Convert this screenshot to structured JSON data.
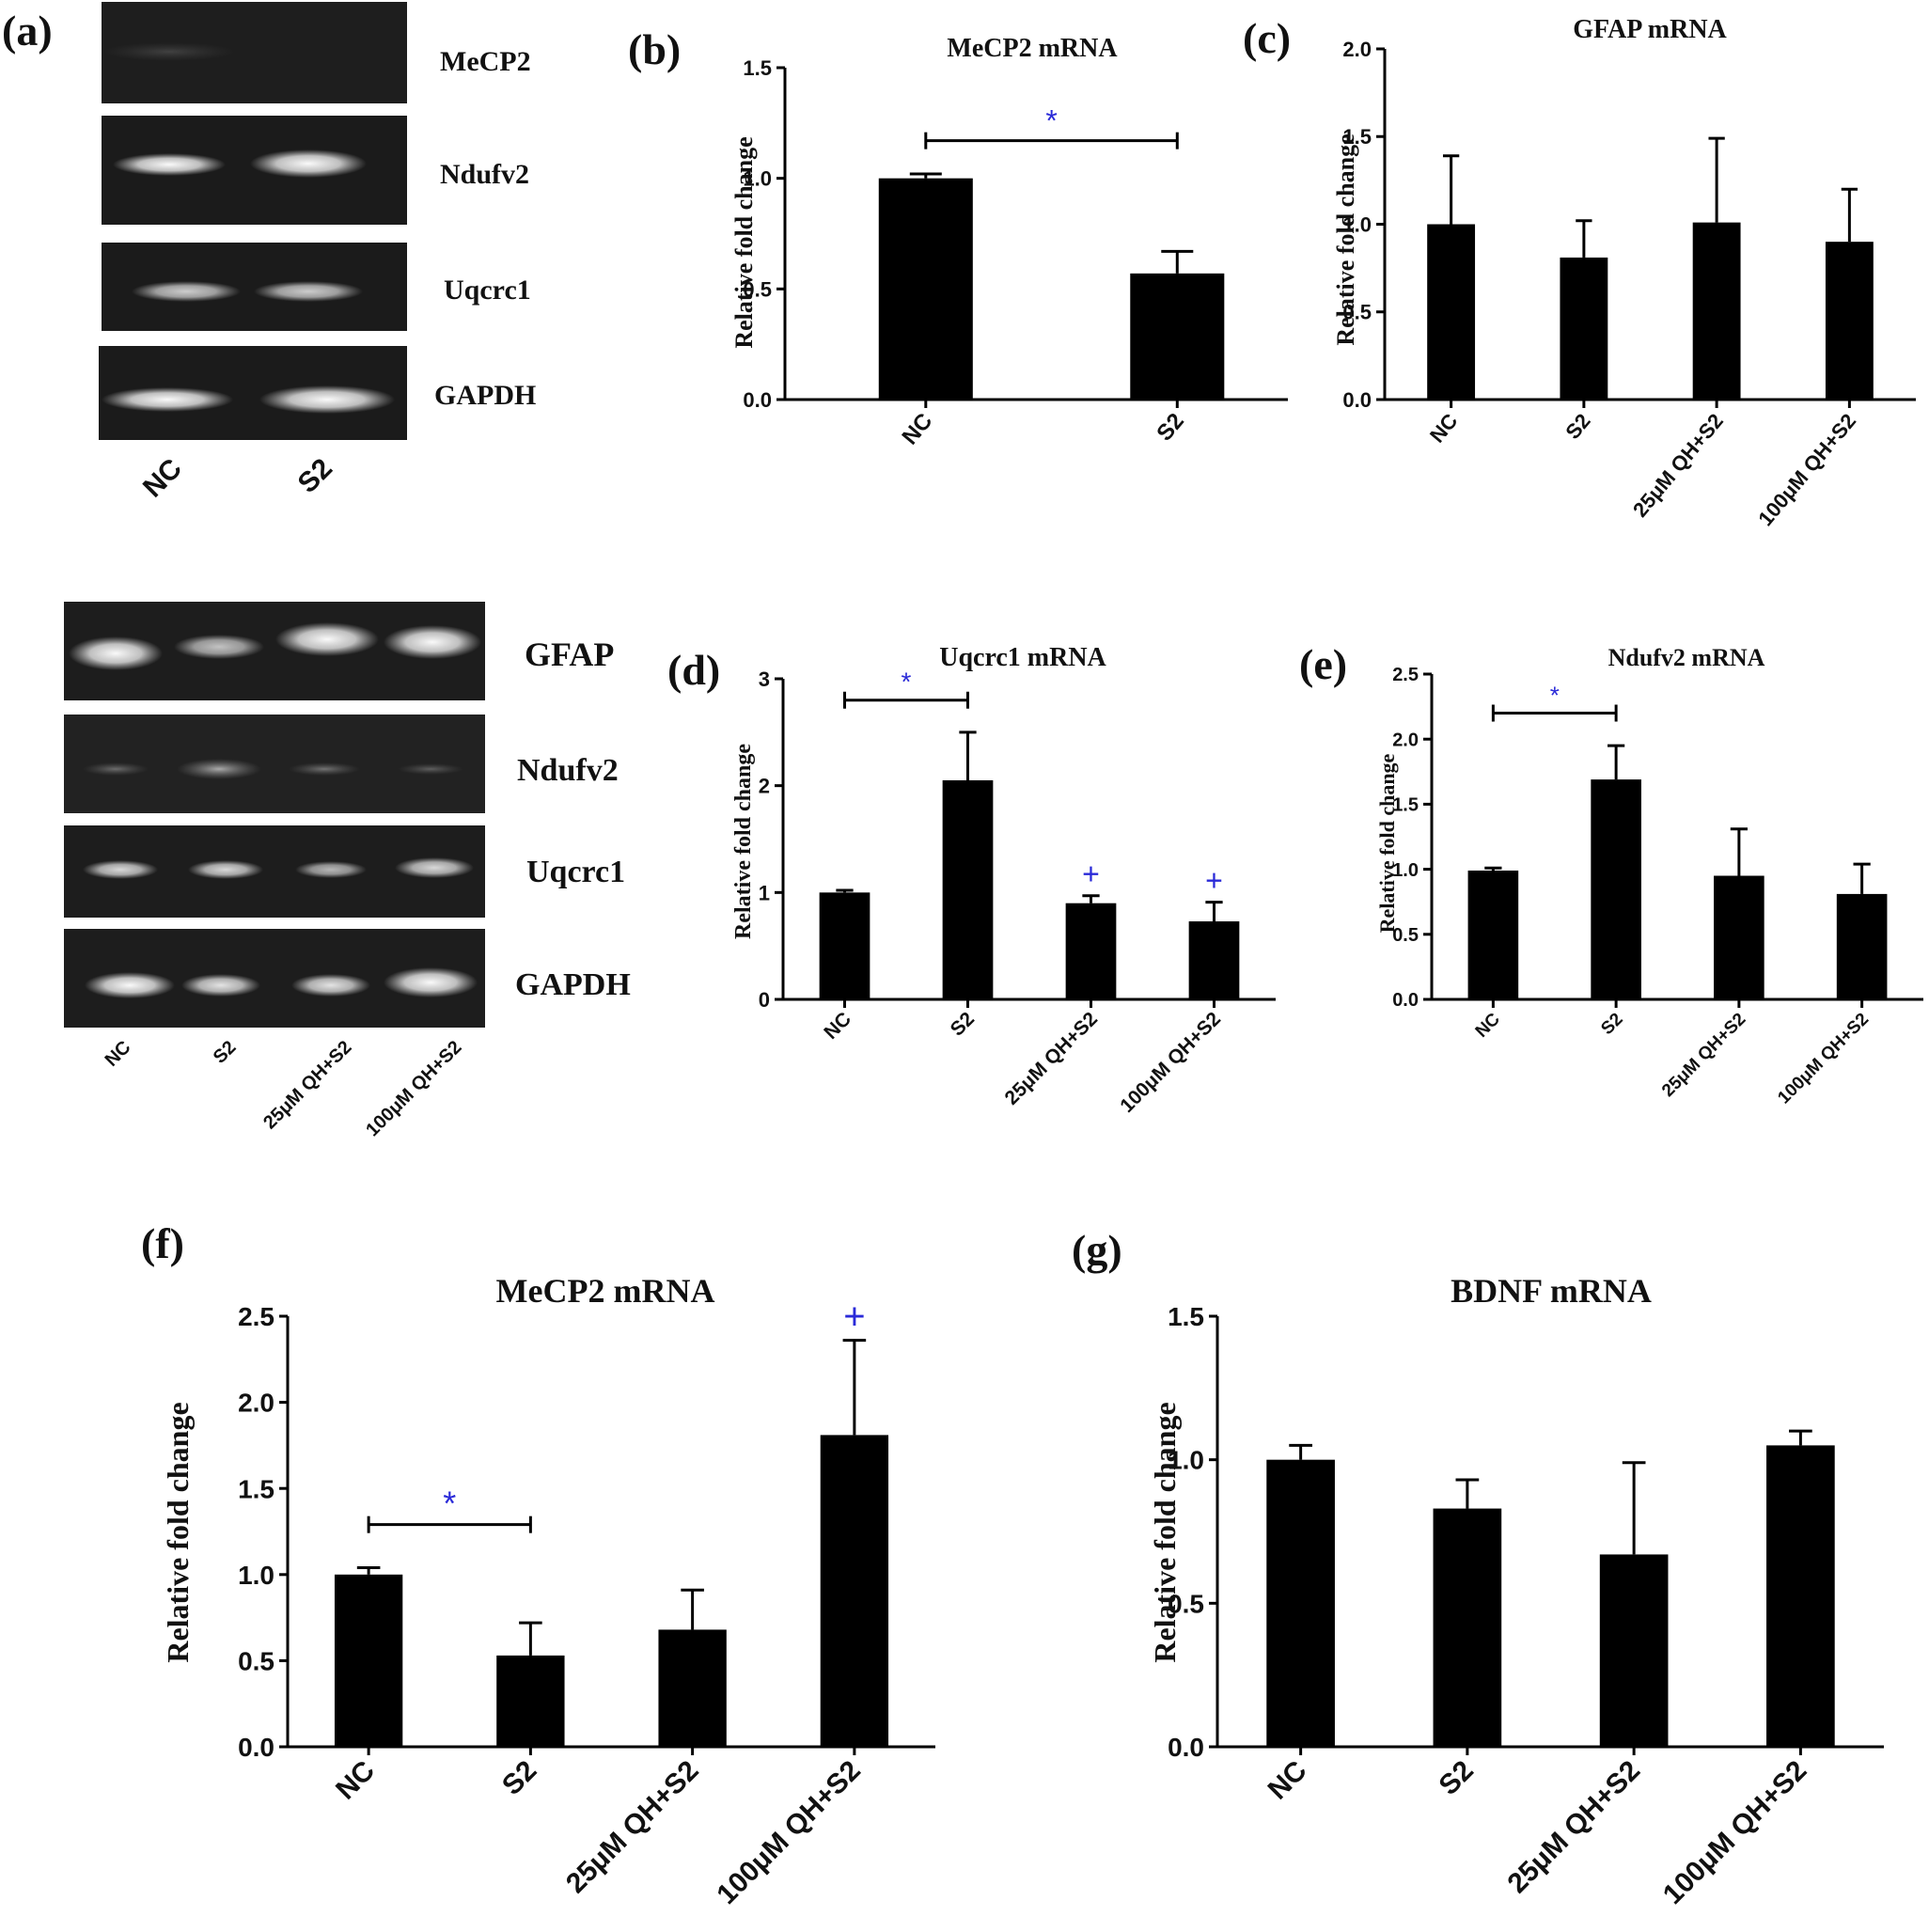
{
  "panel_letters": [
    "(a)",
    "(b)",
    "(c)",
    "(d)",
    "(e)",
    "(f)",
    "(g)"
  ],
  "gel_top": {
    "bands": [
      "MeCP2",
      "Ndufv2",
      "Uqcrc1",
      "GAPDH"
    ],
    "lanes": [
      "NC",
      "S2"
    ]
  },
  "gel_bottom": {
    "bands": [
      "GFAP",
      "Ndufv2",
      "Uqcrc1",
      "GAPDH"
    ],
    "lanes": [
      "NC",
      "S2",
      "25μM QH+S2",
      "100μM QH+S2"
    ]
  },
  "chart_data": [
    {
      "id": "b",
      "type": "bar",
      "title": "MeCP2 mRNA",
      "ylabel": "Relative fold change",
      "categories": [
        "NC",
        "S2"
      ],
      "values": [
        1.0,
        0.57
      ],
      "errors": [
        0.02,
        0.1
      ],
      "ylim": [
        0,
        1.5
      ],
      "yticks": [
        "0.0",
        "0.5",
        "1.0",
        "1.5"
      ],
      "brackets": [
        {
          "from": 0,
          "to": 1,
          "symbol": "*"
        }
      ],
      "markers": []
    },
    {
      "id": "c",
      "type": "bar",
      "title": "GFAP mRNA",
      "ylabel": "Relative fold change",
      "categories": [
        "NC",
        "S2",
        "25μM QH+S2",
        "100μM QH+S2"
      ],
      "values": [
        1.0,
        0.81,
        1.01,
        0.9
      ],
      "errors": [
        0.39,
        0.21,
        0.48,
        0.3
      ],
      "ylim": [
        0,
        2.0
      ],
      "yticks": [
        "0.0",
        "0.5",
        "1.0",
        "1.5",
        "2.0"
      ],
      "brackets": [],
      "markers": []
    },
    {
      "id": "d",
      "type": "bar",
      "title": "Uqcrc1 mRNA",
      "ylabel": "Relative fold change",
      "categories": [
        "NC",
        "S2",
        "25μM QH+S2",
        "100μM QH+S2"
      ],
      "values": [
        1.0,
        2.05,
        0.9,
        0.73
      ],
      "errors": [
        0.02,
        0.45,
        0.07,
        0.18
      ],
      "ylim": [
        0,
        3
      ],
      "yticks": [
        "0",
        "1",
        "2",
        "3"
      ],
      "brackets": [
        {
          "from": 0,
          "to": 1,
          "symbol": "*"
        }
      ],
      "markers": [
        {
          "index": 2,
          "symbol": "+"
        },
        {
          "index": 3,
          "symbol": "+"
        }
      ]
    },
    {
      "id": "e",
      "type": "bar",
      "title": "Ndufv2 mRNA",
      "ylabel": "Relative fold change",
      "categories": [
        "NC",
        "S2",
        "25μM QH+S2",
        "100μM QH+S2"
      ],
      "values": [
        0.99,
        1.69,
        0.95,
        0.81
      ],
      "errors": [
        0.02,
        0.26,
        0.36,
        0.23
      ],
      "ylim": [
        0,
        2.5
      ],
      "yticks": [
        "0.0",
        "0.5",
        "1.0",
        "1.5",
        "2.0",
        "2.5"
      ],
      "brackets": [
        {
          "from": 0,
          "to": 1,
          "symbol": "*"
        }
      ],
      "markers": []
    },
    {
      "id": "f",
      "type": "bar",
      "title": "MeCP2 mRNA",
      "ylabel": "Relative fold change",
      "categories": [
        "NC",
        "S2",
        "25μM QH+S2",
        "100μM QH+S2"
      ],
      "values": [
        1.0,
        0.53,
        0.68,
        1.81
      ],
      "errors": [
        0.04,
        0.19,
        0.23,
        0.55
      ],
      "ylim": [
        0,
        2.5
      ],
      "yticks": [
        "0.0",
        "0.5",
        "1.0",
        "1.5",
        "2.0",
        "2.5"
      ],
      "brackets": [
        {
          "from": 0,
          "to": 1,
          "symbol": "*"
        }
      ],
      "markers": [
        {
          "index": 3,
          "symbol": "+"
        }
      ]
    },
    {
      "id": "g",
      "type": "bar",
      "title": "BDNF mRNA",
      "ylabel": "Relative fold change",
      "categories": [
        "NC",
        "S2",
        "25μM QH+S2",
        "100μM QH+S2"
      ],
      "values": [
        1.0,
        0.83,
        0.67,
        1.05
      ],
      "errors": [
        0.05,
        0.1,
        0.32,
        0.05
      ],
      "ylim": [
        0,
        1.5
      ],
      "yticks": [
        "0.0",
        "0.5",
        "1.0",
        "1.5"
      ],
      "brackets": [],
      "markers": []
    }
  ]
}
